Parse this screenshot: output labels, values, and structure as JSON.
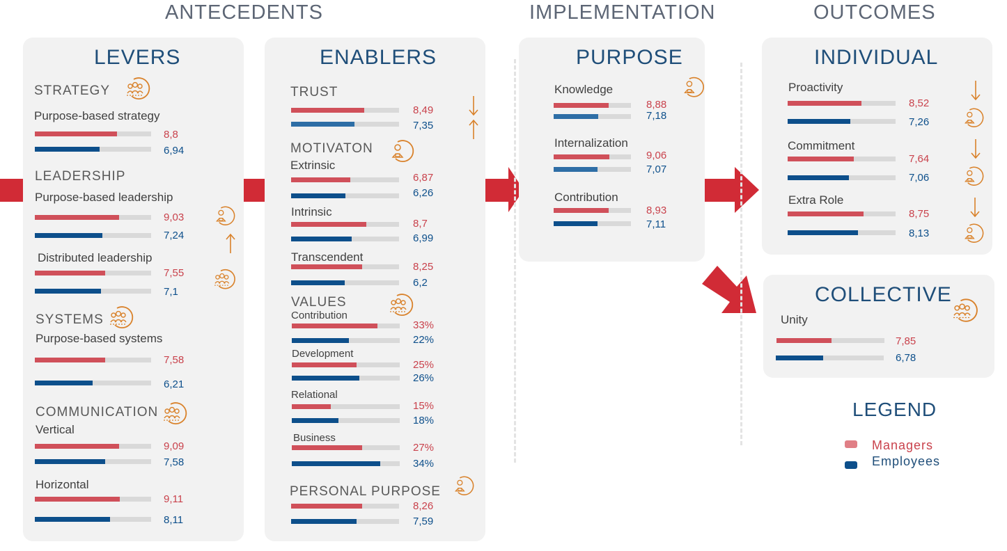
{
  "sections": {
    "antecedents": "ANTECEDENTS",
    "implementation": "IMPLEMENTATION",
    "outcomes": "OUTCOMES"
  },
  "panels": {
    "levers": "LEVERS",
    "enablers": "ENABLERS",
    "purpose": "PURPOSE",
    "individual": "INDIVIDUAL",
    "collective": "COLLECTIVE"
  },
  "colors": {
    "managers": "#d0505a",
    "employees": "#0d4f8b",
    "icon": "#d9822b",
    "arrow": "#d12b36",
    "panel_title": "#1f4e79"
  },
  "icons": [
    "team-target-icon",
    "person-target-icon",
    "up-arrow-icon",
    "down-arrow-icon"
  ],
  "levers": {
    "strategy": {
      "label": "STRATEGY",
      "item": "Purpose-based strategy",
      "managers": "8,8",
      "employees": "6,94",
      "m": 8.8,
      "e": 6.94
    },
    "leadership": {
      "label": "LEADERSHIP",
      "purpose_based": {
        "label": "Purpose-based leadership",
        "managers": "9,03",
        "employees": "7,24",
        "m": 9.03,
        "e": 7.24
      },
      "distributed": {
        "label": "Distributed leadership",
        "managers": "7,55",
        "employees": "7,1",
        "m": 7.55,
        "e": 7.1
      }
    },
    "systems": {
      "label": "SYSTEMS",
      "item": "Purpose-based systems",
      "managers": "7,58",
      "employees": "6,21",
      "m": 7.58,
      "e": 6.21
    },
    "communication": {
      "label": "COMMUNICATION",
      "vertical": {
        "label": "Vertical",
        "managers": "9,09",
        "employees": "7,58",
        "m": 9.09,
        "e": 7.58
      },
      "horizontal": {
        "label": "Horizontal",
        "managers": "9,11",
        "employees": "8,11",
        "m": 9.11,
        "e": 8.11
      }
    }
  },
  "enablers": {
    "trust": {
      "label": "TRUST",
      "managers": "8,49",
      "employees": "7,35",
      "m": 8.49,
      "e": 7.35
    },
    "motivation": {
      "label": "MOTIVATON",
      "extrinsic": {
        "label": "Extrinsic",
        "managers": "6,87",
        "employees": "6,26",
        "m": 6.87,
        "e": 6.26
      },
      "intrinsic": {
        "label": "Intrinsic",
        "managers": "8,7",
        "employees": "6,99",
        "m": 8.7,
        "e": 6.99
      },
      "transcendent": {
        "label": "Transcendent",
        "managers": "8,25",
        "employees": "6,2",
        "m": 8.25,
        "e": 6.2
      }
    },
    "values": {
      "label": "VALUES",
      "contribution": {
        "label": "Contribution",
        "managers": "33%",
        "employees": "22%",
        "m": 33,
        "e": 22
      },
      "development": {
        "label": "Development",
        "managers": "25%",
        "employees": "26%",
        "m": 25,
        "e": 26
      },
      "relational": {
        "label": "Relational",
        "managers": "15%",
        "employees": "18%",
        "m": 15,
        "e": 18
      },
      "business": {
        "label": "Business",
        "managers": "27%",
        "employees": "34%",
        "m": 27,
        "e": 34
      }
    },
    "personal_purpose": {
      "label": "PERSONAL PURPOSE",
      "managers": "8,26",
      "employees": "7,59",
      "m": 8.26,
      "e": 7.59
    }
  },
  "purpose": {
    "knowledge": {
      "label": "Knowledge",
      "managers": "8,88",
      "employees": "7,18",
      "m": 8.88,
      "e": 7.18
    },
    "internalization": {
      "label": "Internalization",
      "managers": "9,06",
      "employees": "7,07",
      "m": 9.06,
      "e": 7.07
    },
    "contribution": {
      "label": "Contribution",
      "managers": "8,93",
      "employees": "7,11",
      "m": 8.93,
      "e": 7.11
    }
  },
  "individual": {
    "proactivity": {
      "label": "Proactivity",
      "managers": "8,52",
      "employees": "7,26",
      "m": 8.52,
      "e": 7.26
    },
    "commitment": {
      "label": "Commitment",
      "managers": "7,64",
      "employees": "7,06",
      "m": 7.64,
      "e": 7.06
    },
    "extra_role": {
      "label": "Extra Role",
      "managers": "8,75",
      "employees": "8,13",
      "m": 8.75,
      "e": 8.13
    }
  },
  "collective": {
    "unity": {
      "label": "Unity",
      "managers": "7,85",
      "employees": "6,78",
      "m": 7.85,
      "e": 6.78
    }
  },
  "legend": {
    "title": "LEGEND",
    "managers": "Managers",
    "employees": "Employees"
  }
}
